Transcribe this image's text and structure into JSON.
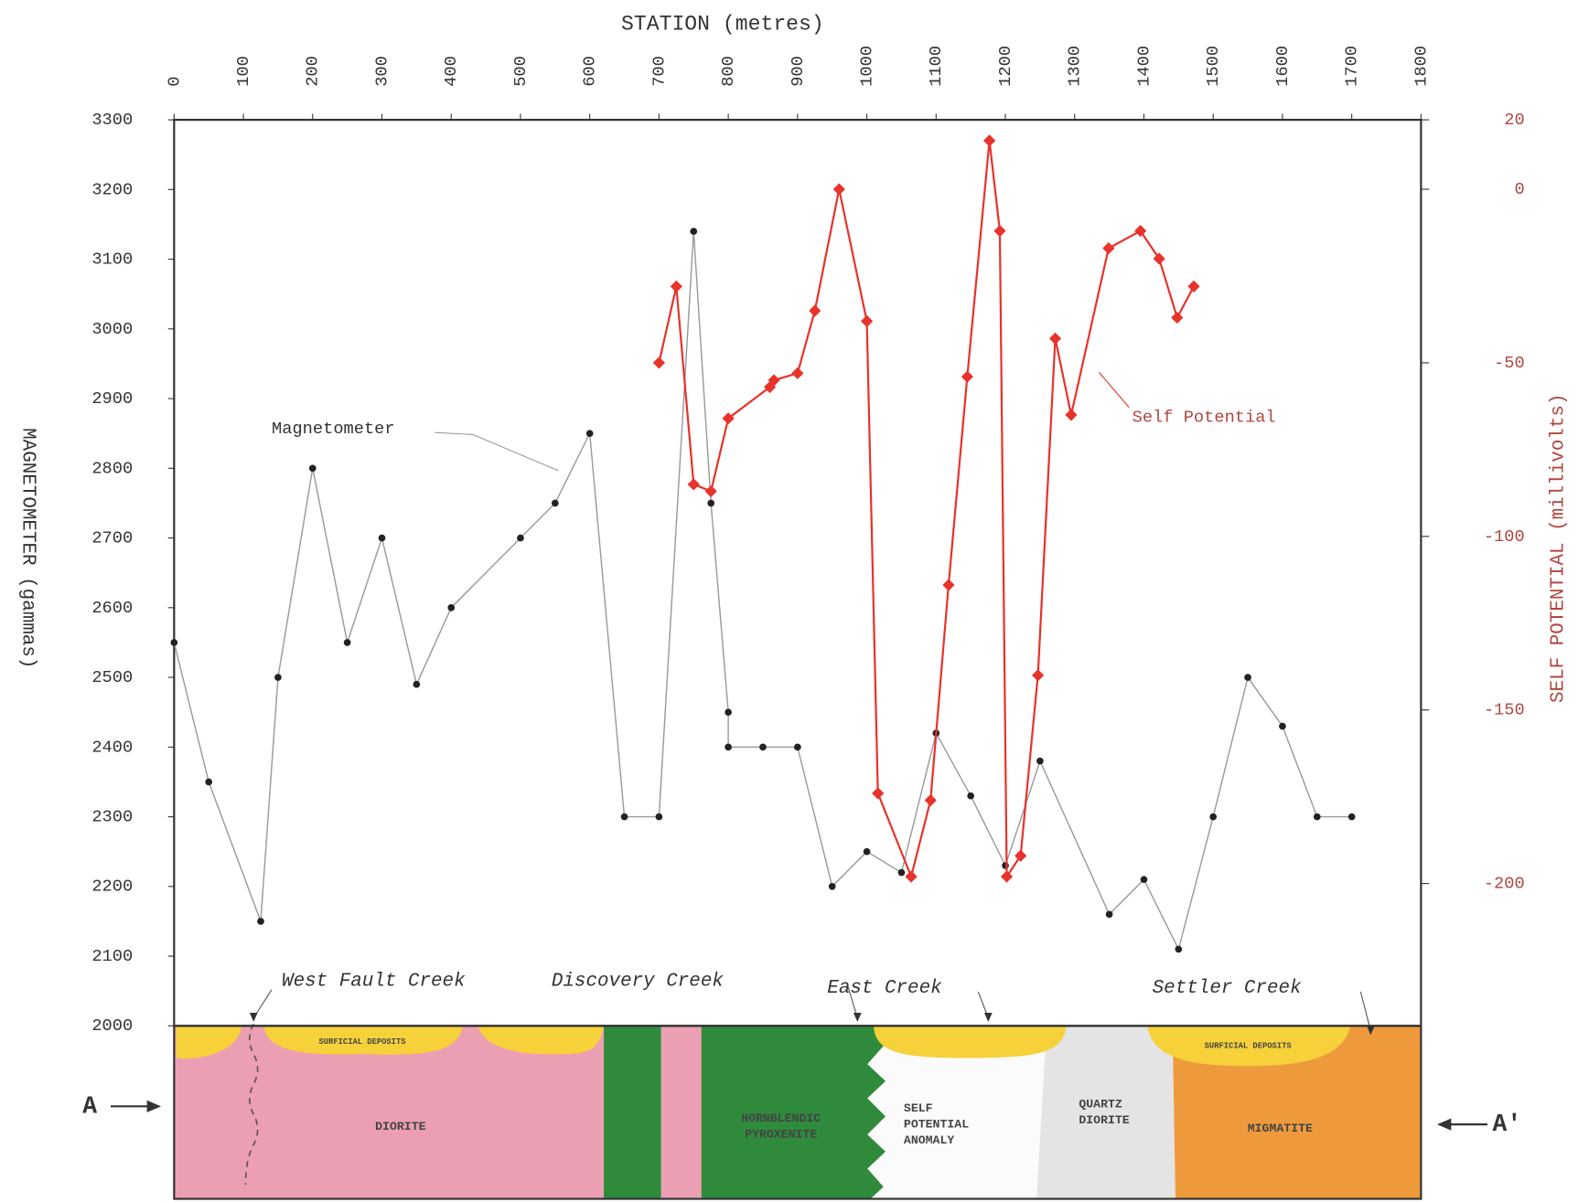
{
  "chart_data": {
    "type": "line",
    "x_label": "STATION (metres)",
    "y_label": "MAGNETOMETER (gammas)",
    "y2_label": "SELF POTENTIAL (millivolts)",
    "xlim": [
      0,
      1800
    ],
    "xticks": [
      0,
      100,
      200,
      300,
      400,
      500,
      600,
      700,
      800,
      900,
      1000,
      1100,
      1200,
      1300,
      1400,
      1500,
      1600,
      1700,
      1800
    ],
    "ylim": [
      2000,
      3300
    ],
    "yticks": [
      2000,
      2100,
      2200,
      2300,
      2400,
      2500,
      2600,
      2700,
      2800,
      2900,
      3000,
      3100,
      3200,
      3300
    ],
    "y2lim": [
      -241,
      20
    ],
    "y2ticks": [
      20,
      0,
      -50,
      -100,
      -150,
      -200
    ],
    "series": [
      {
        "name": "Magnetometer",
        "color": "#9a9a9a",
        "marker_color": "#222222",
        "x": [
          0,
          50,
          125,
          150,
          200,
          250,
          300,
          350,
          400,
          500,
          550,
          600,
          650,
          700,
          750,
          775,
          800,
          800,
          850,
          900,
          950,
          1000,
          1050,
          1100,
          1150,
          1200,
          1250,
          1350,
          1400,
          1450,
          1500,
          1550,
          1600,
          1650,
          1700
        ],
        "values": [
          2550,
          2350,
          2150,
          2500,
          2800,
          2550,
          2700,
          2490,
          2600,
          2700,
          2750,
          2850,
          2300,
          2300,
          3140,
          2750,
          2450,
          2400,
          2400,
          2400,
          2200,
          2250,
          2220,
          2420,
          2330,
          2230,
          2380,
          2160,
          2210,
          2110,
          2300,
          2500,
          2430,
          2300,
          2300
        ]
      },
      {
        "name": "Self Potential",
        "color": "#e8322a",
        "axis": "y2",
        "x": [
          700,
          725,
          750,
          775,
          800,
          860,
          866,
          900,
          925,
          960,
          1000,
          1016,
          1064,
          1092,
          1118,
          1145,
          1177,
          1192,
          1202,
          1222,
          1247,
          1272,
          1295,
          1349,
          1395,
          1422,
          1448,
          1472
        ],
        "values": [
          -50,
          -28,
          -85,
          -87,
          -66,
          -57,
          -55,
          -53,
          -35,
          0,
          -38,
          -174,
          -198,
          -176,
          -114,
          -54,
          14,
          -12,
          -198,
          -192,
          -140,
          -43,
          -65,
          -17,
          -12,
          -20,
          -37,
          -28
        ]
      }
    ],
    "creeks": [
      "West Fault Creek",
      "Discovery Creek",
      "East Creek",
      "Settler Creek"
    ],
    "surficial_label": "SURFICIAL DEPOSITS",
    "units": [
      [
        "DIORITE"
      ],
      [
        "HORNBLENDIC",
        "PYROXENITE"
      ],
      [
        "SELF",
        "POTENTIAL",
        "ANOMALY"
      ],
      [
        "QUARTZ",
        "DIORITE"
      ],
      [
        "MIGMATITE"
      ]
    ],
    "section_ends": [
      "A",
      "A'"
    ]
  }
}
